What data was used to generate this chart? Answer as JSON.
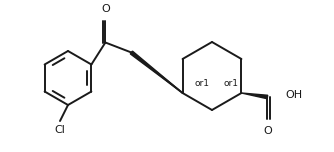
{
  "background_color": "#ffffff",
  "line_color": "#1a1a1a",
  "line_width": 1.4,
  "text_color": "#1a1a1a",
  "font_size_label": 8,
  "font_size_or1": 6.5,
  "label_O_carbonyl": "O",
  "label_O_acid": "O",
  "label_OH": "OH",
  "label_Cl": "Cl",
  "label_or1": "or1",
  "figw": 3.34,
  "figh": 1.52,
  "dpi": 100
}
